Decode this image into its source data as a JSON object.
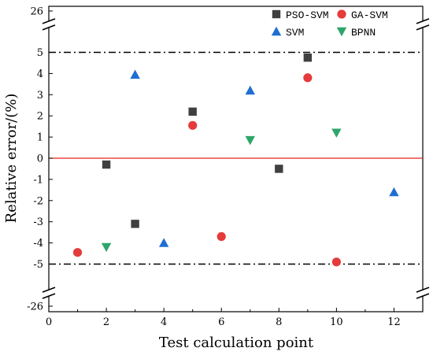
{
  "chart_data": {
    "type": "scatter",
    "title": "",
    "xlabel": "Test calculation point",
    "ylabel": "Relative error/(%)",
    "xlim": [
      0,
      13
    ],
    "ylim": [
      -26,
      26
    ],
    "axis_break": {
      "lower": [
        -26,
        -5.6
      ],
      "upper": [
        5.6,
        26
      ]
    },
    "x_ticks": [
      "0",
      "2",
      "4",
      "6",
      "8",
      "10",
      "12"
    ],
    "y_ticks": [
      "26",
      "5",
      "4",
      "3",
      "2",
      "1",
      "0",
      "-1",
      "-2",
      "-3",
      "-4",
      "-5",
      "-26"
    ],
    "reference_lines": [
      {
        "y": 5,
        "style": "dash-dot",
        "color": "#000000"
      },
      {
        "y": -5,
        "style": "dash-dot",
        "color": "#000000"
      },
      {
        "y": 0,
        "style": "solid",
        "color": "#e8231e"
      }
    ],
    "legend_position": "top-right",
    "series": [
      {
        "name": "PSO-SVM",
        "marker": "square",
        "color": "#404040",
        "points": [
          [
            2,
            -0.3
          ],
          [
            3,
            -3.1
          ],
          [
            5,
            2.2
          ],
          [
            8,
            -0.5
          ],
          [
            9,
            4.75
          ]
        ]
      },
      {
        "name": "GA-SVM",
        "marker": "circle",
        "color": "#e63b3b",
        "points": [
          [
            1,
            -4.45
          ],
          [
            5,
            1.55
          ],
          [
            6,
            -3.7
          ],
          [
            9,
            3.8
          ],
          [
            10,
            -4.9
          ]
        ]
      },
      {
        "name": "SVM",
        "marker": "triangle-up",
        "color": "#1f6fd1",
        "points": [
          [
            3,
            3.95
          ],
          [
            4,
            -4.0
          ],
          [
            7,
            3.2
          ],
          [
            12,
            -1.6
          ]
        ]
      },
      {
        "name": "BPNN",
        "marker": "triangle-down",
        "color": "#2ca66a",
        "points": [
          [
            2,
            -4.2
          ],
          [
            7,
            0.85
          ],
          [
            10,
            1.2
          ]
        ]
      }
    ],
    "grid": false
  }
}
